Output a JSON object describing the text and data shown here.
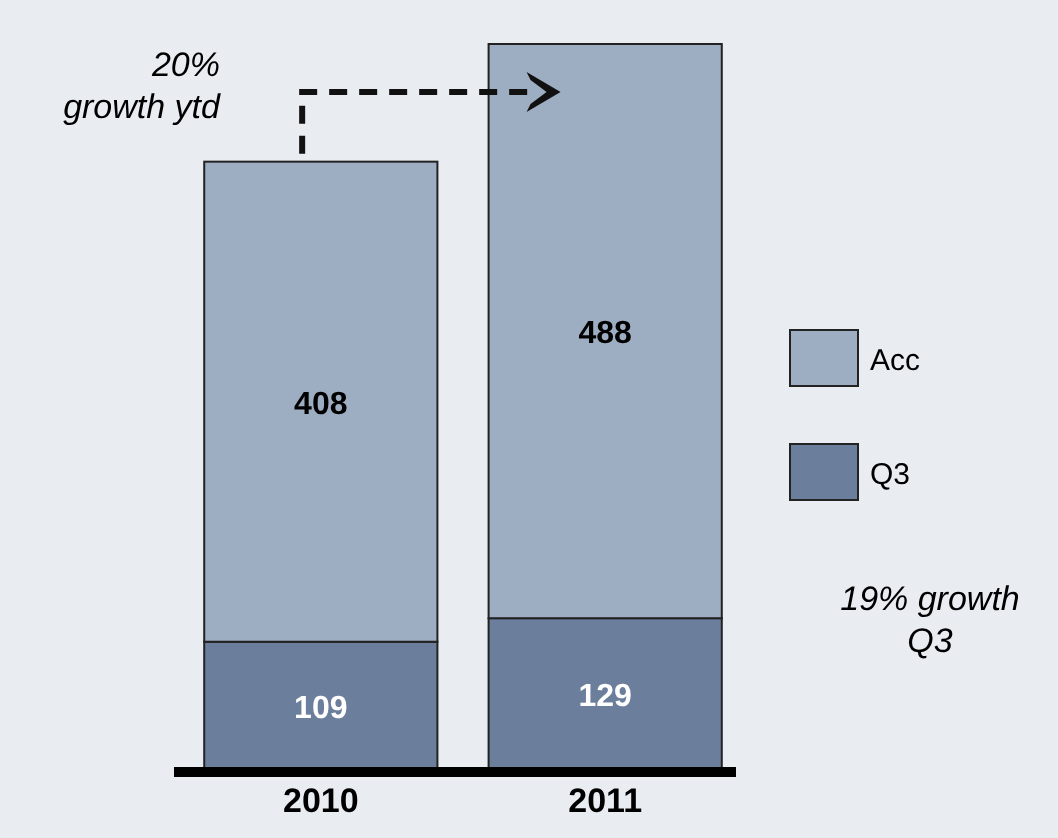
{
  "chart_data": {
    "type": "bar",
    "stacked": true,
    "categories": [
      "2010",
      "2011"
    ],
    "series": [
      {
        "name": "Q3",
        "color": "#6b7f9c",
        "values": [
          109,
          129
        ]
      },
      {
        "name": "Acc",
        "color": "#9dadc2",
        "values": [
          408,
          488
        ]
      }
    ],
    "data_labels": true,
    "legend": "right",
    "annotations": [
      "20%\ngrowth ytd",
      "19% growth\nQ3"
    ]
  }
}
